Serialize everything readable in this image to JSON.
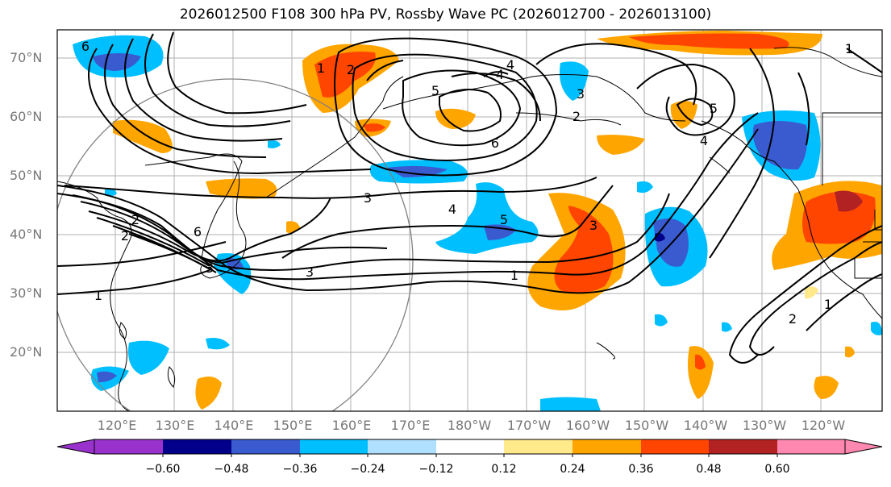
{
  "title": "2026012500 F108 300 hPa PV, Rossby Wave PC (2026012700 - 2026013100)",
  "map": {
    "lat_labels": [
      "70°N",
      "60°N",
      "50°N",
      "40°N",
      "30°N",
      "20°N"
    ],
    "lon_labels": [
      "120°E",
      "130°E",
      "140°E",
      "150°E",
      "160°E",
      "170°E",
      "180°W",
      "170°W",
      "160°W",
      "150°W",
      "140°W",
      "130°W",
      "120°W"
    ],
    "contour_labels": [
      "6",
      "1",
      "2",
      "4",
      "5",
      "3",
      "6",
      "5",
      "4",
      "3",
      "2",
      "6",
      "3",
      "1",
      "1",
      "2",
      "3",
      "4",
      "5",
      "2",
      "3",
      "1",
      "2",
      "1",
      "4"
    ]
  },
  "colorbar": {
    "ticks": [
      "−0.60",
      "−0.48",
      "−0.36",
      "−0.24",
      "−0.12",
      "0.12",
      "0.24",
      "0.36",
      "0.48",
      "0.60"
    ],
    "colors": [
      "#9932cc",
      "#00008b",
      "#3a5bd0",
      "#00bfff",
      "#b0e0ff",
      "#ffffff",
      "#ffe98a",
      "#ffa500",
      "#ff4500",
      "#b22222",
      "#ff88b0"
    ]
  }
}
